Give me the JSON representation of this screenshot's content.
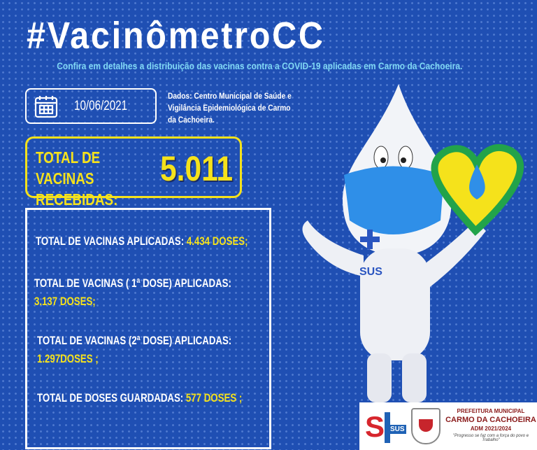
{
  "title": "#VacinômetroCC",
  "subtitle": "Confira em detalhes a distribuição das vacinas contra a COVID-19 aplicadas em Carmo da Cachoeira.",
  "date": "10/06/2021",
  "source": "Dados: Centro Municipal de Saúde e Vigilância Epidemiológica de Carmo da Cachoeira.",
  "received": {
    "label": "TOTAL DE VACINAS RECEBIDAS:",
    "value": "5.011"
  },
  "stats": [
    {
      "label": "TOTAL DE VACINAS APLICADAS:",
      "value": "4.434 DOSES;"
    },
    {
      "label": "TOTAL DE VACINAS ( 1ª DOSE) APLICADAS:",
      "value": "3.137 DOSES;"
    },
    {
      "label": "TOTAL DE VACINAS (2ª DOSE) APLICADAS:",
      "value": "1.297DOSES ;"
    },
    {
      "label": "TOTAL DE DOSES GUARDADAS:",
      "value": "577 DOSES ;"
    }
  ],
  "mascot": {
    "badge": "SUS"
  },
  "footer": {
    "sus": "SUS",
    "line1": "PREFEITURA MUNICIPAL",
    "line2": "CARMO DA CACHOEIRA",
    "line3": "ADM 2021/2024",
    "slogan": "\"Progresso se faz com a força do povo e Trabalho\""
  },
  "colors": {
    "background": "#1f4fb3",
    "accent": "#f5e21b",
    "subtitle": "#7fd8f5"
  }
}
